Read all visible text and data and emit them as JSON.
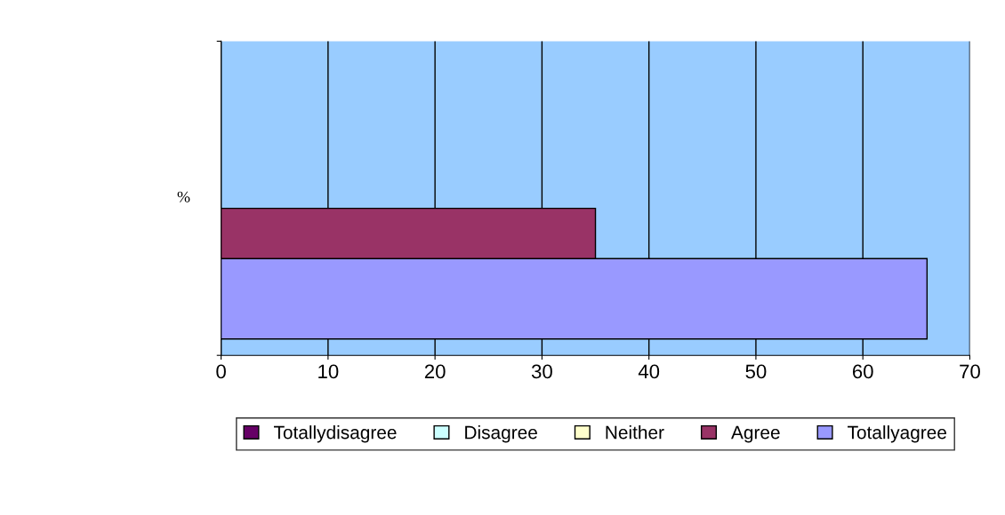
{
  "chart_data": {
    "type": "bar",
    "orientation": "horizontal",
    "ylabel": "%",
    "categories": [
      null
    ],
    "series": [
      {
        "name": "Totallydisagree",
        "color": "#660066",
        "values": [
          null
        ]
      },
      {
        "name": "Disagree",
        "color": "#ccffff",
        "values": [
          null
        ]
      },
      {
        "name": "Neither",
        "color": "#ffffcc",
        "values": [
          null
        ]
      },
      {
        "name": "Agree",
        "color": "#993366",
        "values": [
          35
        ]
      },
      {
        "name": "Totallyagree",
        "color": "#9999ff",
        "values": [
          66
        ]
      }
    ],
    "xlim": [
      0,
      70
    ],
    "xticks": [
      0,
      10,
      20,
      30,
      40,
      50,
      60,
      70
    ],
    "grid": "x",
    "legend": "bottom"
  }
}
